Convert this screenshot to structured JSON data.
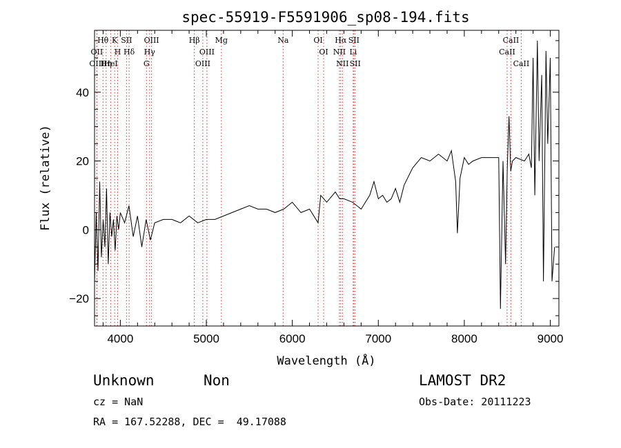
{
  "chart_data": {
    "type": "line",
    "title": "spec-55919-F5591906_sp08-194.fits",
    "xlabel": "Wavelength (Å)",
    "ylabel": "Flux (relative)",
    "xlim": [
      3700,
      9100
    ],
    "ylim": [
      -28,
      58
    ],
    "xticks": [
      4000,
      5000,
      6000,
      7000,
      8000,
      9000
    ],
    "yticks": [
      -20,
      0,
      20,
      40
    ],
    "ytick_labels": [
      "−20",
      "0",
      "20",
      "40"
    ],
    "grid": false,
    "series": [
      {
        "x": [
          3700,
          3720,
          3740,
          3760,
          3780,
          3800,
          3820,
          3840,
          3860,
          3880,
          3900,
          3920,
          3940,
          3960,
          3980,
          4000,
          4050,
          4100,
          4150,
          4200,
          4250,
          4300,
          4350,
          4400,
          4500,
          4600,
          4700,
          4800,
          4900,
          5000,
          5100,
          5200,
          5300,
          5400,
          5500,
          5600,
          5700,
          5800,
          5900,
          6000,
          6100,
          6200,
          6300,
          6330,
          6400,
          6500,
          6550,
          6600,
          6700,
          6800,
          6900,
          6950,
          7000,
          7050,
          7100,
          7150,
          7200,
          7250,
          7300,
          7400,
          7500,
          7600,
          7700,
          7800,
          7850,
          7900,
          7920,
          7950,
          8000,
          8050,
          8100,
          8200,
          8300,
          8400,
          8420,
          8450,
          8480,
          8500,
          8520,
          8540,
          8560,
          8600,
          8700,
          8750,
          8780,
          8800,
          8820,
          8850,
          8870,
          8900,
          8920,
          8950,
          8970,
          9000,
          9020,
          9050
        ],
        "y": [
          -15,
          5,
          -12,
          14,
          -8,
          3,
          -5,
          12,
          -10,
          5,
          -2,
          3,
          -6,
          4,
          0,
          5,
          2,
          7,
          -2,
          4,
          -5,
          3,
          -3,
          2,
          3,
          3,
          2,
          4,
          2,
          3,
          3,
          4,
          5,
          6,
          7,
          6,
          6,
          5,
          6,
          8,
          5,
          6,
          2,
          10,
          8,
          11,
          9,
          9,
          8,
          6,
          10,
          14,
          9,
          10,
          8,
          9,
          12,
          8,
          13,
          18,
          21,
          20,
          22,
          20,
          23,
          14,
          -1,
          15,
          21,
          19,
          20,
          21,
          21,
          21,
          -23,
          20,
          -10,
          18,
          33,
          17,
          20,
          21,
          20,
          22,
          18,
          50,
          10,
          55,
          20,
          45,
          -15,
          52,
          25,
          50,
          -15,
          -5
        ]
      }
    ],
    "annotation_lines": [
      {
        "label": "Hθ",
        "x": 3798
      },
      {
        "label": "OII",
        "x": 3727
      },
      {
        "label": "OIII",
        "x": 3727
      },
      {
        "label": "Hη",
        "x": 3835
      },
      {
        "label": "K",
        "x": 3934
      },
      {
        "label": "HeI",
        "x": 3889
      },
      {
        "label": "H",
        "x": 3969
      },
      {
        "label": "SII",
        "x": 4072
      },
      {
        "label": "Hδ",
        "x": 4102
      },
      {
        "label": "OIII",
        "x": 4363
      },
      {
        "label": "Hγ",
        "x": 4340
      },
      {
        "label": "G",
        "x": 4304
      },
      {
        "label": "Hβ",
        "x": 4861
      },
      {
        "label": "OIII",
        "x": 5007
      },
      {
        "label": "OIII",
        "x": 4959
      },
      {
        "label": "Mg",
        "x": 5175
      },
      {
        "label": "Na",
        "x": 5893
      },
      {
        "label": "OI",
        "x": 6300
      },
      {
        "label": "OI",
        "x": 6364
      },
      {
        "label": "Hα",
        "x": 6563
      },
      {
        "label": "SII",
        "x": 6716
      },
      {
        "label": "NII",
        "x": 6548
      },
      {
        "label": "Li",
        "x": 6708
      },
      {
        "label": "NII",
        "x": 6583
      },
      {
        "label": "SII",
        "x": 6731
      },
      {
        "label": "CaII",
        "x": 8542
      },
      {
        "label": "CaII",
        "x": 8498
      },
      {
        "label": "CaII",
        "x": 8662
      }
    ]
  },
  "info": {
    "class_text": "Unknown",
    "subclass_text": "Non",
    "cz_text": "cz = NaN",
    "coords_text": "RA = 167.52288, DEC =  49.17088",
    "survey_text": "LAMOST DR2",
    "obs_date_text": "Obs-Date: 20111223"
  }
}
